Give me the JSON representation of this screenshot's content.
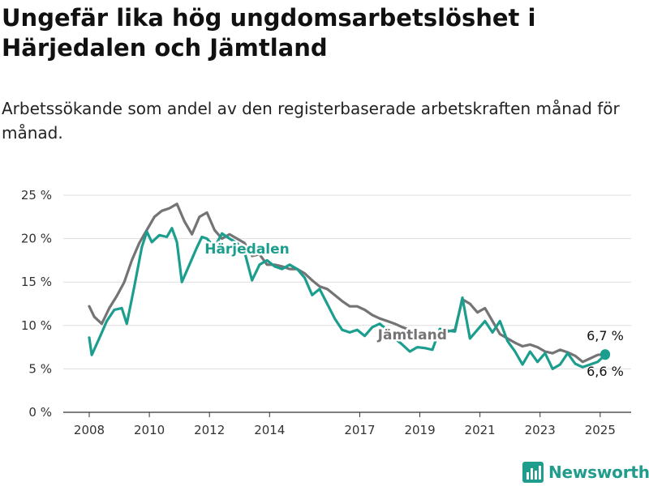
{
  "header": {
    "title": "Ungefär lika hög ungdomsarbetslöshet i Härjedalen och Jämtland",
    "subtitle": "Arbetssökande som andel av den registerbaserade arbetskraften månad för månad."
  },
  "brand": {
    "name": "Newsworthy",
    "color": "#1f9c8b",
    "icon": "bar-chart-logo-icon"
  },
  "chart_data": {
    "type": "line",
    "title": "Ungefär lika hög ungdomsarbetslöshet i Härjedalen och Jämtland",
    "subtitle": "Arbetssökande som andel av den registerbaserade arbetskraften månad för månad.",
    "xlabel": "",
    "ylabel": "",
    "x_ticks": [
      "2008",
      "2010",
      "2012",
      "2014",
      "2017",
      "2019",
      "2021",
      "2023",
      "2025"
    ],
    "y_ticks": [
      "0 %",
      "5 %",
      "10 %",
      "15 %",
      "20 %",
      "25 %"
    ],
    "xlim": [
      "2008-01",
      "2025-03"
    ],
    "ylim": [
      0,
      25
    ],
    "grid": "horizontal",
    "legend": "inline labels",
    "series": [
      {
        "name": "Jämtland",
        "color": "#747375",
        "label_at": [
          "2018-10",
          8.4
        ],
        "end_value_label": "6,7 %",
        "points": [
          [
            "2008-01",
            12.2
          ],
          [
            "2008-03",
            11.0
          ],
          [
            "2008-06",
            10.2
          ],
          [
            "2008-09",
            12.0
          ],
          [
            "2008-12",
            13.4
          ],
          [
            "2009-03",
            15.0
          ],
          [
            "2009-06",
            17.5
          ],
          [
            "2009-09",
            19.5
          ],
          [
            "2009-12",
            21.0
          ],
          [
            "2010-03",
            22.5
          ],
          [
            "2010-06",
            23.2
          ],
          [
            "2010-09",
            23.5
          ],
          [
            "2010-12",
            24.0
          ],
          [
            "2011-03",
            22.0
          ],
          [
            "2011-06",
            20.5
          ],
          [
            "2011-09",
            22.5
          ],
          [
            "2011-12",
            23.0
          ],
          [
            "2012-03",
            21.0
          ],
          [
            "2012-06",
            20.0
          ],
          [
            "2012-09",
            20.5
          ],
          [
            "2012-12",
            20.0
          ],
          [
            "2013-03",
            19.5
          ],
          [
            "2013-06",
            18.0
          ],
          [
            "2013-09",
            18.2
          ],
          [
            "2013-12",
            17.0
          ],
          [
            "2014-03",
            17.0
          ],
          [
            "2014-06",
            16.8
          ],
          [
            "2014-09",
            16.5
          ],
          [
            "2014-12",
            16.5
          ],
          [
            "2015-03",
            16.0
          ],
          [
            "2015-06",
            15.2
          ],
          [
            "2015-09",
            14.5
          ],
          [
            "2015-12",
            14.2
          ],
          [
            "2016-03",
            13.5
          ],
          [
            "2016-06",
            12.8
          ],
          [
            "2016-09",
            12.2
          ],
          [
            "2016-12",
            12.2
          ],
          [
            "2017-03",
            11.8
          ],
          [
            "2017-06",
            11.2
          ],
          [
            "2017-09",
            10.8
          ],
          [
            "2017-12",
            10.5
          ],
          [
            "2018-03",
            10.2
          ],
          [
            "2018-06",
            9.8
          ],
          [
            "2018-09",
            9.5
          ],
          [
            "2018-12",
            9.2
          ],
          [
            "2019-03",
            9.0
          ],
          [
            "2019-06",
            8.8
          ],
          [
            "2019-09",
            9.2
          ],
          [
            "2019-12",
            9.3
          ],
          [
            "2020-03",
            9.5
          ],
          [
            "2020-06",
            13.0
          ],
          [
            "2020-09",
            12.5
          ],
          [
            "2020-12",
            11.5
          ],
          [
            "2021-03",
            12.0
          ],
          [
            "2021-06",
            10.5
          ],
          [
            "2021-09",
            9.0
          ],
          [
            "2021-12",
            8.5
          ],
          [
            "2022-03",
            8.0
          ],
          [
            "2022-06",
            7.6
          ],
          [
            "2022-09",
            7.8
          ],
          [
            "2022-12",
            7.5
          ],
          [
            "2023-03",
            7.0
          ],
          [
            "2023-06",
            6.8
          ],
          [
            "2023-09",
            7.2
          ],
          [
            "2023-12",
            6.9
          ],
          [
            "2024-03",
            6.5
          ],
          [
            "2024-06",
            5.8
          ],
          [
            "2024-09",
            6.2
          ],
          [
            "2024-12",
            6.6
          ],
          [
            "2025-03",
            6.7
          ]
        ]
      },
      {
        "name": "Härjedalen",
        "color": "#1c9e8e",
        "label_at": [
          "2013-04",
          18.3
        ],
        "end_value_label": "6,6 %",
        "points": [
          [
            "2008-01",
            8.6
          ],
          [
            "2008-02",
            6.6
          ],
          [
            "2008-05",
            8.5
          ],
          [
            "2008-08",
            10.5
          ],
          [
            "2008-11",
            11.8
          ],
          [
            "2009-02",
            12.0
          ],
          [
            "2009-04",
            10.2
          ],
          [
            "2009-07",
            14.5
          ],
          [
            "2009-10",
            19.0
          ],
          [
            "2009-12",
            20.8
          ],
          [
            "2010-02",
            19.6
          ],
          [
            "2010-05",
            20.4
          ],
          [
            "2010-08",
            20.2
          ],
          [
            "2010-10",
            21.2
          ],
          [
            "2010-12",
            19.6
          ],
          [
            "2011-02",
            15.0
          ],
          [
            "2011-05",
            17.0
          ],
          [
            "2011-08",
            19.0
          ],
          [
            "2011-10",
            20.2
          ],
          [
            "2011-12",
            20.0
          ],
          [
            "2012-03",
            19.0
          ],
          [
            "2012-06",
            20.6
          ],
          [
            "2012-09",
            20.0
          ],
          [
            "2012-12",
            19.5
          ],
          [
            "2013-03",
            18.5
          ],
          [
            "2013-06",
            15.2
          ],
          [
            "2013-09",
            17.0
          ],
          [
            "2013-12",
            17.5
          ],
          [
            "2014-03",
            16.8
          ],
          [
            "2014-06",
            16.5
          ],
          [
            "2014-09",
            17.0
          ],
          [
            "2014-12",
            16.5
          ],
          [
            "2015-03",
            15.5
          ],
          [
            "2015-06",
            13.5
          ],
          [
            "2015-09",
            14.2
          ],
          [
            "2015-12",
            12.5
          ],
          [
            "2016-03",
            10.8
          ],
          [
            "2016-06",
            9.5
          ],
          [
            "2016-09",
            9.2
          ],
          [
            "2016-12",
            9.5
          ],
          [
            "2017-03",
            8.8
          ],
          [
            "2017-06",
            9.8
          ],
          [
            "2017-09",
            10.2
          ],
          [
            "2017-12",
            9.5
          ],
          [
            "2018-03",
            8.5
          ],
          [
            "2018-06",
            7.8
          ],
          [
            "2018-09",
            7.0
          ],
          [
            "2018-12",
            7.5
          ],
          [
            "2019-03",
            7.4
          ],
          [
            "2019-06",
            7.2
          ],
          [
            "2019-09",
            9.6
          ],
          [
            "2019-12",
            9.4
          ],
          [
            "2020-03",
            9.3
          ],
          [
            "2020-06",
            13.2
          ],
          [
            "2020-09",
            8.5
          ],
          [
            "2020-12",
            9.5
          ],
          [
            "2021-03",
            10.5
          ],
          [
            "2021-06",
            9.2
          ],
          [
            "2021-09",
            10.5
          ],
          [
            "2021-12",
            8.2
          ],
          [
            "2022-03",
            7.0
          ],
          [
            "2022-06",
            5.5
          ],
          [
            "2022-09",
            7.0
          ],
          [
            "2022-12",
            5.8
          ],
          [
            "2023-03",
            6.8
          ],
          [
            "2023-06",
            5.0
          ],
          [
            "2023-09",
            5.5
          ],
          [
            "2023-12",
            6.8
          ],
          [
            "2024-03",
            5.6
          ],
          [
            "2024-06",
            5.2
          ],
          [
            "2024-09",
            5.5
          ],
          [
            "2024-12",
            5.8
          ],
          [
            "2025-03",
            6.6
          ]
        ]
      }
    ]
  }
}
